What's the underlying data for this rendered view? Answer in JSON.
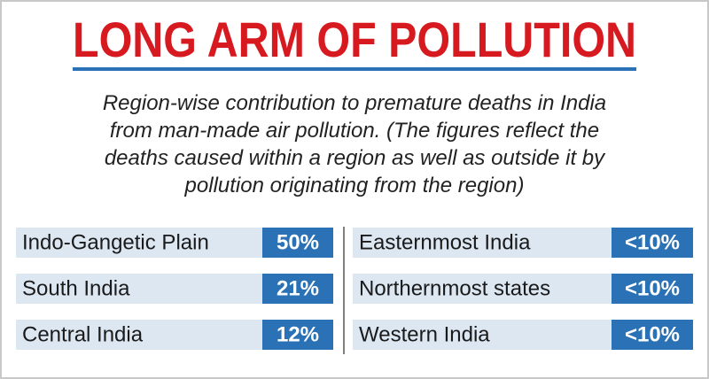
{
  "header": {
    "title": "LONG ARM OF POLLUTION",
    "subtitle_lines": [
      "Region-wise contribution to premature deaths in India",
      "from man-made air pollution. (The figures reflect the",
      "deaths caused within a region as well as outside it by",
      "pollution originating from the region)"
    ]
  },
  "table": {
    "left": [
      {
        "label": "Indo-Gangetic Plain",
        "value": "50%"
      },
      {
        "label": "South India",
        "value": "21%"
      },
      {
        "label": "Central India",
        "value": "12%"
      }
    ],
    "right": [
      {
        "label": "Easternmost India",
        "value": "<10%"
      },
      {
        "label": "Northernmost states",
        "value": "<10%"
      },
      {
        "label": "Western India",
        "value": "<10%"
      }
    ]
  }
}
